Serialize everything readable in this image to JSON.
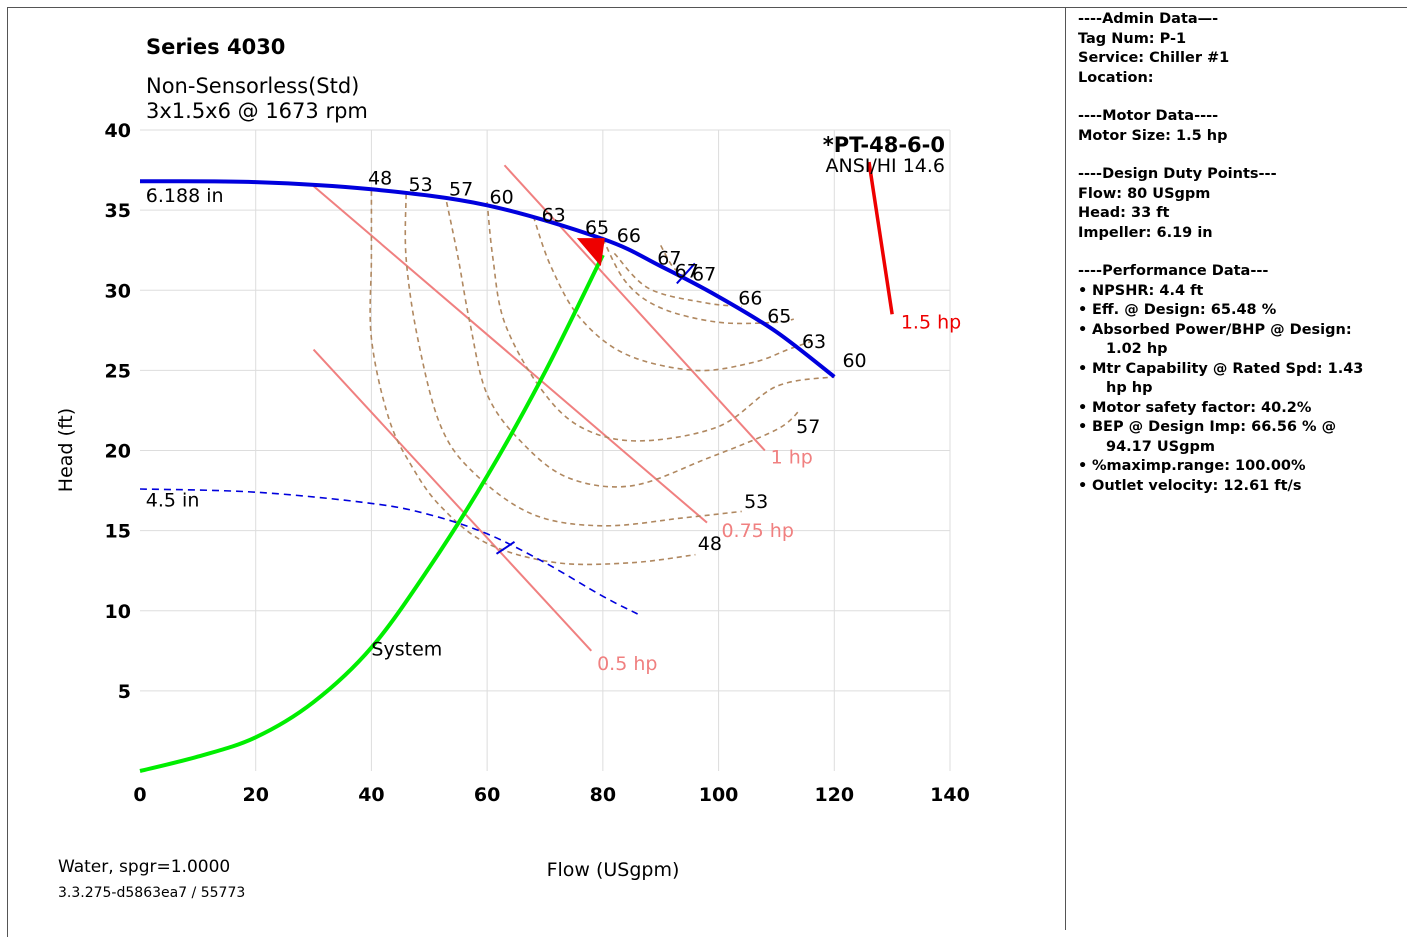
{
  "header": {
    "series": "Series 4030",
    "sub1": "Non-Sensorless(Std)",
    "sub2": "3x1.5x6 @ 1673 rpm",
    "model": "*PT-48-6-0",
    "standard": "ANSI/HI 14.6"
  },
  "footer": {
    "fluid": "Water, spgr=1.0000",
    "version": "3.3.275-d5863ea7 / 55773"
  },
  "colors": {
    "impeller": "#0000dd",
    "system": "#00ee00",
    "power": "#f08080",
    "motor": "#ee0000",
    "efficiency": "#b08860",
    "grid": "#dddddd"
  },
  "chart_data": {
    "type": "line",
    "xlabel": "Flow (USgpm)",
    "ylabel": "Head (ft)",
    "xlim": [
      0,
      140
    ],
    "ylim": [
      0,
      40
    ],
    "xticks": [
      0,
      20,
      40,
      60,
      80,
      100,
      120,
      140
    ],
    "yticks": [
      5,
      10,
      15,
      20,
      25,
      30,
      35,
      40
    ],
    "grid": true,
    "impeller_curves": [
      {
        "name": "6.188 in",
        "style": "solid",
        "points": [
          [
            0,
            36.8
          ],
          [
            20,
            36.75
          ],
          [
            40,
            36.3
          ],
          [
            60,
            35.3
          ],
          [
            80,
            33.2
          ],
          [
            90,
            31.5
          ],
          [
            100,
            29.6
          ],
          [
            110,
            27.4
          ],
          [
            120,
            24.6
          ]
        ]
      },
      {
        "name": "4.5 in",
        "style": "dashed",
        "points": [
          [
            0,
            17.6
          ],
          [
            20,
            17.4
          ],
          [
            40,
            16.7
          ],
          [
            50,
            16.0
          ],
          [
            60,
            14.8
          ],
          [
            70,
            13.0
          ],
          [
            80,
            10.9
          ],
          [
            86,
            9.8
          ]
        ]
      }
    ],
    "system_curve": {
      "name": "System",
      "points": [
        [
          0,
          0
        ],
        [
          10,
          0.9
        ],
        [
          20,
          2.1
        ],
        [
          30,
          4.3
        ],
        [
          40,
          7.7
        ],
        [
          50,
          12.7
        ],
        [
          60,
          18.4
        ],
        [
          70,
          24.9
        ],
        [
          80,
          32.2
        ]
      ]
    },
    "design_point": {
      "flow": 80,
      "head": 33
    },
    "power_lines": [
      {
        "name": "0.5 hp",
        "points": [
          [
            30,
            26.3
          ],
          [
            78,
            7.5
          ]
        ]
      },
      {
        "name": "0.75 hp",
        "points": [
          [
            30,
            36.5
          ],
          [
            98,
            15.5
          ]
        ]
      },
      {
        "name": "1 hp",
        "points": [
          [
            63,
            37.8
          ],
          [
            108,
            20
          ]
        ]
      },
      {
        "name": "1.5 hp",
        "points": [
          [
            126,
            38
          ],
          [
            130,
            28.5
          ]
        ]
      }
    ],
    "efficiency_curves": [
      {
        "label": "48",
        "points": [
          [
            40,
            36.2
          ],
          [
            40,
            32
          ],
          [
            40,
            27
          ],
          [
            43,
            22
          ],
          [
            47,
            19
          ],
          [
            52,
            16.5
          ],
          [
            60,
            14.2
          ],
          [
            72,
            13
          ],
          [
            85,
            13
          ],
          [
            96,
            13.5
          ]
        ]
      },
      {
        "label": "53",
        "points": [
          [
            46,
            36
          ],
          [
            46,
            32
          ],
          [
            48,
            27
          ],
          [
            52,
            21.5
          ],
          [
            58,
            18.5
          ],
          [
            68,
            16
          ],
          [
            80,
            15.3
          ],
          [
            94,
            15.8
          ],
          [
            104,
            16.2
          ]
        ]
      },
      {
        "label": "57",
        "points": [
          [
            53,
            35.5
          ],
          [
            55,
            32
          ],
          [
            57,
            28
          ],
          [
            60,
            23.5
          ],
          [
            66,
            20.5
          ],
          [
            74,
            18.3
          ],
          [
            85,
            17.8
          ],
          [
            98,
            19.5
          ],
          [
            110,
            21.3
          ],
          [
            114,
            22.5
          ]
        ]
      },
      {
        "label": "60",
        "points": [
          [
            60,
            35.5
          ],
          [
            61,
            32
          ],
          [
            63,
            28
          ],
          [
            69,
            24
          ],
          [
            76,
            21.5
          ],
          [
            86,
            20.6
          ],
          [
            100,
            21.5
          ],
          [
            110,
            24
          ],
          [
            120,
            24.6
          ]
        ]
      },
      {
        "label": "63",
        "points": [
          [
            68,
            34.6
          ],
          [
            71,
            31.5
          ],
          [
            76,
            28.3
          ],
          [
            84,
            26
          ],
          [
            96,
            25
          ],
          [
            106,
            25.5
          ],
          [
            112,
            26.3
          ],
          [
            116,
            26.8
          ]
        ]
      },
      {
        "label": "65",
        "points": [
          [
            80,
            33.2
          ],
          [
            84,
            30.5
          ],
          [
            90,
            28.9
          ],
          [
            100,
            28
          ],
          [
            110,
            28
          ],
          [
            113,
            28.2
          ]
        ]
      },
      {
        "label": "66",
        "points": [
          [
            82,
            32.3
          ],
          [
            88,
            30.1
          ],
          [
            98,
            29.2
          ],
          [
            104,
            29
          ]
        ]
      },
      {
        "label": "67",
        "points": [
          [
            90,
            32.8
          ],
          [
            92,
            31.5
          ],
          [
            94,
            30.9
          ]
        ]
      }
    ],
    "bep_tick": {
      "flow": 94.17,
      "head": 31.3
    },
    "eff_labels": [
      {
        "text": "48",
        "x": 41.5,
        "y": 36.6
      },
      {
        "text": "53",
        "x": 48.5,
        "y": 36.2
      },
      {
        "text": "57",
        "x": 55.5,
        "y": 35.9
      },
      {
        "text": "60",
        "x": 62.5,
        "y": 35.4
      },
      {
        "text": "63",
        "x": 71.5,
        "y": 34.3
      },
      {
        "text": "65",
        "x": 79,
        "y": 33.5
      },
      {
        "text": "66",
        "x": 84.5,
        "y": 33.0
      },
      {
        "text": "67",
        "x": 91.5,
        "y": 31.6
      },
      {
        "text": "67",
        "x": 94.5,
        "y": 30.8
      },
      {
        "text": "67",
        "x": 97.5,
        "y": 30.6
      },
      {
        "text": "66",
        "x": 105.5,
        "y": 29.1
      },
      {
        "text": "65",
        "x": 110.5,
        "y": 28.0
      },
      {
        "text": "63",
        "x": 116.5,
        "y": 26.4
      },
      {
        "text": "60",
        "x": 123.5,
        "y": 25.2
      },
      {
        "text": "57",
        "x": 115.5,
        "y": 21.1
      },
      {
        "text": "53",
        "x": 106.5,
        "y": 16.4
      },
      {
        "text": "48",
        "x": 98.5,
        "y": 13.8
      }
    ],
    "curve_labels": [
      {
        "text": "6.188 in",
        "x": 1,
        "y": 35.5,
        "color": "#000"
      },
      {
        "text": "4.5 in",
        "x": 1,
        "y": 16.5,
        "color": "#000"
      },
      {
        "text": "System",
        "x": 40,
        "y": 7.2,
        "color": "#000"
      },
      {
        "text": "0.5 hp",
        "x": 79,
        "y": 6.3,
        "color": "#f08080"
      },
      {
        "text": "0.75 hp",
        "x": 100.5,
        "y": 14.6,
        "color": "#f08080"
      },
      {
        "text": "1 hp",
        "x": 109,
        "y": 19.2,
        "color": "#f08080"
      },
      {
        "text": "1.5 hp",
        "x": 131.5,
        "y": 27.6,
        "color": "#ee0000"
      }
    ]
  },
  "side": {
    "admin_header": "----Admin Data—-",
    "tag": "Tag Num: P-1",
    "service": "Service: Chiller #1",
    "location": "Location:",
    "motor_header": "----Motor Data----",
    "motor_size": "Motor Size: 1.5 hp",
    "duty_header": "----Design Duty Points---",
    "flow": "Flow: 80 USgpm",
    "head": "Head: 33 ft",
    "impeller": "Impeller: 6.19 in",
    "perf_header": "----Performance Data---",
    "npshr": "NPSHR: 4.4 ft",
    "eff": "Eff. @ Design: 65.48 %",
    "bhp1": "Absorbed Power/BHP @ Design:",
    "bhp2": "1.02 hp",
    "mtr1": "Mtr Capability @ Rated Spd: 1.43",
    "mtr2": "hp hp",
    "sf": "Motor safety factor: 40.2%",
    "bep1": "BEP @ Design Imp: 66.56 % @",
    "bep2": "94.17 USgpm",
    "range": "%maximp.range: 100.00%",
    "velocity": "Outlet velocity: 12.61 ft/s"
  }
}
